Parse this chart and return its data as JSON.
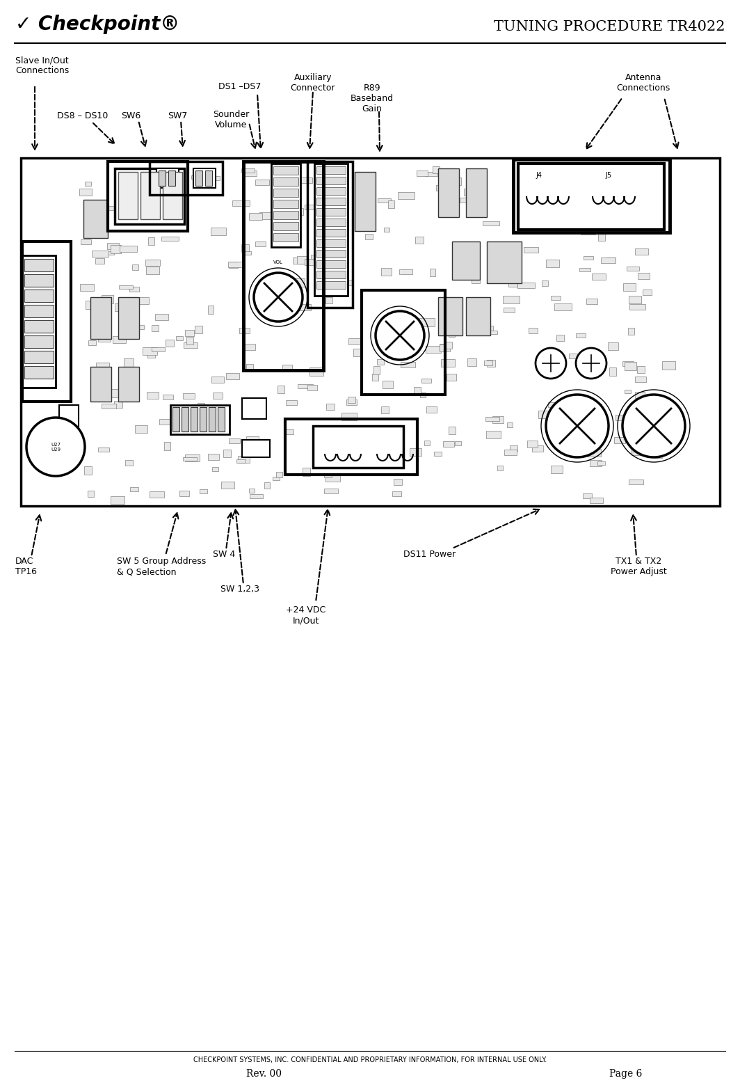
{
  "title": "TUNING PROCEDURE TR4022",
  "footer_line1": "CHECKPOINT SYSTEMS, INC. CONFIDENTIAL AND PROPRIETARY INFORMATION, FOR INTERNAL USE ONLY.",
  "footer_rev": "Rev. 00",
  "footer_page": "Page 6",
  "bg_color": "#ffffff",
  "fig_width": 10.64,
  "fig_height": 15.59,
  "title_fontsize": 15,
  "label_fontsize": 9,
  "footer_fontsize": 7
}
